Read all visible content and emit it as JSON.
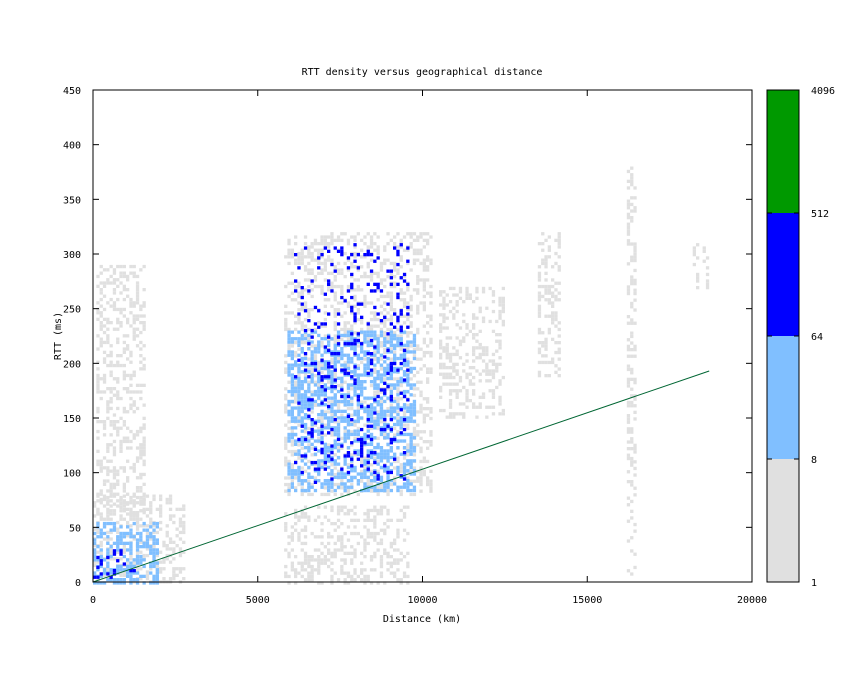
{
  "chart_data": {
    "type": "heatmap",
    "title": "RTT density versus geographical distance",
    "xlabel": "Distance (km)",
    "ylabel": "RTT (ms)",
    "xlim": [
      0,
      20000
    ],
    "ylim": [
      0,
      450
    ],
    "x_ticks": [
      "0",
      "5000",
      "10000",
      "15000",
      "20000"
    ],
    "y_ticks": [
      "0",
      "50",
      "100",
      "150",
      "200",
      "250",
      "300",
      "350",
      "400",
      "450"
    ],
    "grid": false,
    "colorbar": {
      "scale": "log",
      "tick_labels": [
        "1",
        "8",
        "64",
        "512",
        "4096"
      ],
      "bands": [
        {
          "from": 1,
          "to": 8,
          "color": "#e0e0e0"
        },
        {
          "from": 8,
          "to": 64,
          "color": "#80bfff"
        },
        {
          "from": 64,
          "to": 512,
          "color": "#0000ff"
        },
        {
          "from": 512,
          "to": 4096,
          "color": "#009900"
        }
      ]
    },
    "density_regions": [
      {
        "x": [
          0,
          2800
        ],
        "y": [
          0,
          80
        ],
        "level": "light"
      },
      {
        "x": [
          0,
          2000
        ],
        "y": [
          0,
          55
        ],
        "level": "medium"
      },
      {
        "x": [
          0,
          1500
        ],
        "y": [
          0,
          30
        ],
        "level": "high"
      },
      {
        "x": [
          100,
          1600
        ],
        "y": [
          60,
          290
        ],
        "level": "light"
      },
      {
        "x": [
          5800,
          10300
        ],
        "y": [
          80,
          320
        ],
        "level": "light"
      },
      {
        "x": [
          5900,
          9800
        ],
        "y": [
          85,
          230
        ],
        "level": "medium"
      },
      {
        "x": [
          6100,
          9600
        ],
        "y": [
          90,
          310
        ],
        "level": "high"
      },
      {
        "x": [
          5800,
          9600
        ],
        "y": [
          0,
          70
        ],
        "level": "light"
      },
      {
        "x": [
          10500,
          12500
        ],
        "y": [
          150,
          270
        ],
        "level": "light"
      },
      {
        "x": [
          13500,
          14200
        ],
        "y": [
          190,
          320
        ],
        "level": "light"
      },
      {
        "x": [
          16200,
          16500
        ],
        "y": [
          0,
          380
        ],
        "level": "light"
      },
      {
        "x": [
          18200,
          18700
        ],
        "y": [
          270,
          310
        ],
        "level": "light"
      }
    ],
    "min_rtt_line": {
      "color": "#006633",
      "x": [
        0,
        18700
      ],
      "y": [
        0,
        193
      ]
    }
  }
}
